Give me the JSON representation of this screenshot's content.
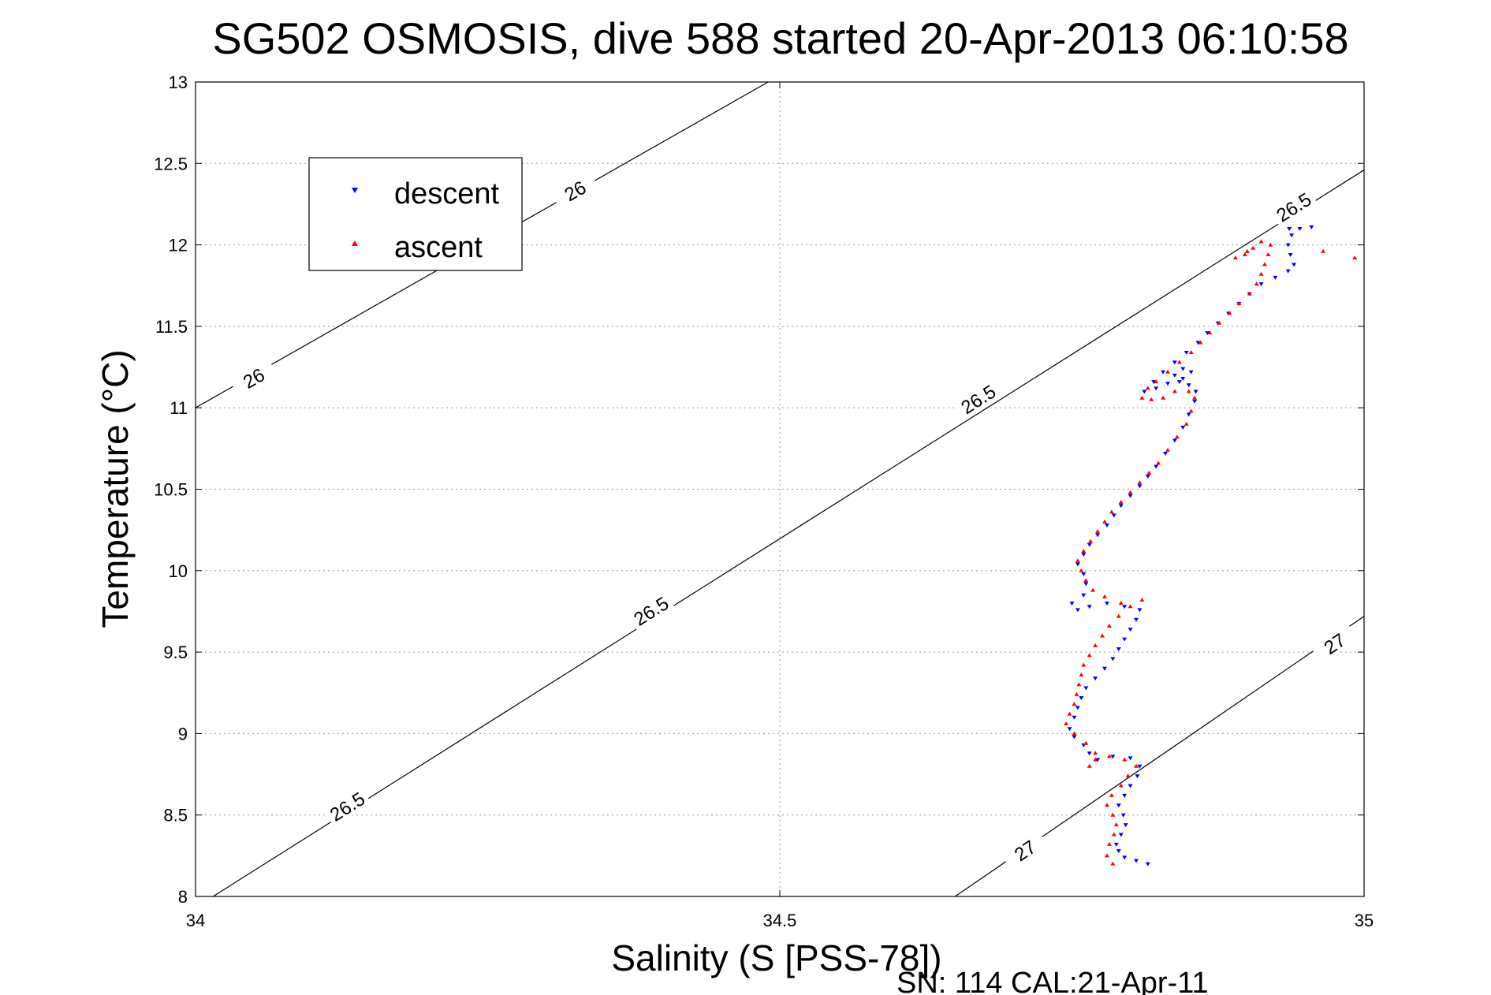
{
  "chart_data": {
    "type": "scatter",
    "title": "SG502 OSMOSIS, dive 588 started 20-Apr-2013 06:10:58",
    "xlabel": "Salinity (S [PSS-78])",
    "ylabel": "Temperature (°C)",
    "footer": "SN: 114  CAL:21-Apr-11",
    "xlim": [
      34,
      35
    ],
    "ylim": [
      8,
      13
    ],
    "xticks": [
      34,
      34.5,
      35
    ],
    "xtick_labels": [
      "34",
      "34.5",
      "35"
    ],
    "yticks": [
      8,
      8.5,
      9,
      9.5,
      10,
      10.5,
      11,
      11.5,
      12,
      12.5,
      13
    ],
    "ytick_labels": [
      "8",
      "8.5",
      "9",
      "9.5",
      "10",
      "10.5",
      "11",
      "11.5",
      "12",
      "12.5",
      "13"
    ],
    "grid": true,
    "legend": {
      "placement": "upper-left",
      "entries": [
        "descent",
        "ascent"
      ]
    },
    "colors": {
      "descent": "#0000ff",
      "ascent": "#ff0000",
      "contour": "#000000"
    },
    "contours": [
      {
        "label": "26",
        "points": [
          [
            34.0,
            11.0
          ],
          [
            34.49,
            13.0
          ]
        ],
        "labels_at": [
          [
            34.05,
            11.18
          ],
          [
            34.325,
            12.33
          ]
        ]
      },
      {
        "label": "26.5",
        "points": [
          [
            34.015,
            8.0
          ],
          [
            35.0,
            12.46
          ]
        ],
        "labels_at": [
          [
            34.13,
            8.55
          ],
          [
            34.39,
            9.75
          ],
          [
            34.67,
            11.05
          ],
          [
            34.94,
            12.23
          ]
        ]
      },
      {
        "label": "27",
        "points": [
          [
            34.65,
            8.0
          ],
          [
            35.0,
            9.72
          ]
        ],
        "labels_at": [
          [
            34.71,
            8.28
          ],
          [
            34.975,
            9.55
          ]
        ]
      }
    ],
    "series": [
      {
        "name": "descent",
        "marker": "triangle-down",
        "points": [
          [
            34.815,
            8.2
          ],
          [
            34.805,
            8.22
          ],
          [
            34.795,
            8.24
          ],
          [
            34.79,
            8.28
          ],
          [
            34.788,
            8.32
          ],
          [
            34.792,
            8.38
          ],
          [
            34.796,
            8.44
          ],
          [
            34.794,
            8.5
          ],
          [
            34.79,
            8.56
          ],
          [
            34.795,
            8.62
          ],
          [
            34.8,
            8.68
          ],
          [
            34.806,
            8.74
          ],
          [
            34.808,
            8.8
          ],
          [
            34.8,
            8.85
          ],
          [
            34.785,
            8.86
          ],
          [
            34.772,
            8.84
          ],
          [
            34.765,
            8.88
          ],
          [
            34.76,
            8.93
          ],
          [
            34.752,
            8.98
          ],
          [
            34.748,
            9.03
          ],
          [
            34.752,
            9.1
          ],
          [
            34.755,
            9.16
          ],
          [
            34.758,
            9.22
          ],
          [
            34.762,
            9.28
          ],
          [
            34.77,
            9.34
          ],
          [
            34.778,
            9.4
          ],
          [
            34.785,
            9.46
          ],
          [
            34.79,
            9.52
          ],
          [
            34.795,
            9.58
          ],
          [
            34.8,
            9.64
          ],
          [
            34.805,
            9.7
          ],
          [
            34.808,
            9.76
          ],
          [
            34.795,
            9.78
          ],
          [
            34.78,
            9.8
          ],
          [
            34.765,
            9.78
          ],
          [
            34.755,
            9.76
          ],
          [
            34.75,
            9.8
          ],
          [
            34.76,
            9.85
          ],
          [
            34.762,
            9.92
          ],
          [
            34.76,
            9.98
          ],
          [
            34.755,
            10.04
          ],
          [
            34.76,
            10.1
          ],
          [
            34.765,
            10.16
          ],
          [
            34.772,
            10.22
          ],
          [
            34.78,
            10.28
          ],
          [
            34.786,
            10.34
          ],
          [
            34.792,
            10.4
          ],
          [
            34.8,
            10.46
          ],
          [
            34.808,
            10.52
          ],
          [
            34.815,
            10.58
          ],
          [
            34.822,
            10.64
          ],
          [
            34.83,
            10.72
          ],
          [
            34.838,
            10.8
          ],
          [
            34.845,
            10.88
          ],
          [
            34.85,
            10.96
          ],
          [
            34.855,
            11.04
          ],
          [
            34.856,
            11.1
          ],
          [
            34.85,
            11.14
          ],
          [
            34.842,
            11.16
          ],
          [
            34.838,
            11.2
          ],
          [
            34.845,
            11.24
          ],
          [
            34.852,
            11.22
          ],
          [
            34.845,
            11.18
          ],
          [
            34.832,
            11.15
          ],
          [
            34.822,
            11.12
          ],
          [
            34.812,
            11.1
          ],
          [
            34.82,
            11.16
          ],
          [
            34.828,
            11.22
          ],
          [
            34.838,
            11.28
          ],
          [
            34.848,
            11.34
          ],
          [
            34.858,
            11.4
          ],
          [
            34.866,
            11.46
          ],
          [
            34.875,
            11.52
          ],
          [
            34.884,
            11.58
          ],
          [
            34.893,
            11.64
          ],
          [
            34.902,
            11.7
          ],
          [
            34.912,
            11.76
          ],
          [
            34.924,
            11.8
          ],
          [
            34.935,
            11.84
          ],
          [
            34.94,
            11.88
          ],
          [
            34.937,
            11.94
          ],
          [
            34.935,
            12.0
          ],
          [
            34.938,
            12.06
          ],
          [
            34.936,
            12.1
          ],
          [
            34.945,
            12.1
          ],
          [
            34.955,
            12.11
          ]
        ]
      },
      {
        "name": "ascent",
        "marker": "triangle-up",
        "points": [
          [
            34.785,
            8.2
          ],
          [
            34.78,
            8.25
          ],
          [
            34.782,
            8.32
          ],
          [
            34.786,
            8.38
          ],
          [
            34.788,
            8.44
          ],
          [
            34.785,
            8.5
          ],
          [
            34.78,
            8.56
          ],
          [
            34.784,
            8.62
          ],
          [
            34.792,
            8.68
          ],
          [
            34.798,
            8.74
          ],
          [
            34.805,
            8.8
          ],
          [
            34.795,
            8.84
          ],
          [
            34.782,
            8.86
          ],
          [
            34.77,
            8.84
          ],
          [
            34.765,
            8.8
          ],
          [
            34.77,
            8.88
          ],
          [
            34.762,
            8.94
          ],
          [
            34.752,
            9.0
          ],
          [
            34.745,
            9.06
          ],
          [
            34.748,
            9.12
          ],
          [
            34.752,
            9.18
          ],
          [
            34.754,
            9.24
          ],
          [
            34.756,
            9.3
          ],
          [
            34.758,
            9.36
          ],
          [
            34.76,
            9.42
          ],
          [
            34.765,
            9.48
          ],
          [
            34.77,
            9.54
          ],
          [
            34.776,
            9.6
          ],
          [
            34.782,
            9.66
          ],
          [
            34.79,
            9.72
          ],
          [
            34.8,
            9.78
          ],
          [
            34.81,
            9.82
          ],
          [
            34.792,
            9.8
          ],
          [
            34.778,
            9.84
          ],
          [
            34.768,
            9.88
          ],
          [
            34.762,
            9.94
          ],
          [
            34.758,
            10.0
          ],
          [
            34.755,
            10.06
          ],
          [
            34.76,
            10.12
          ],
          [
            34.766,
            10.18
          ],
          [
            34.772,
            10.24
          ],
          [
            34.778,
            10.3
          ],
          [
            34.784,
            10.36
          ],
          [
            34.792,
            10.42
          ],
          [
            34.8,
            10.48
          ],
          [
            34.808,
            10.54
          ],
          [
            34.816,
            10.6
          ],
          [
            34.824,
            10.66
          ],
          [
            34.832,
            10.74
          ],
          [
            34.84,
            10.82
          ],
          [
            34.848,
            10.9
          ],
          [
            34.852,
            10.98
          ],
          [
            34.855,
            11.06
          ],
          [
            34.85,
            11.1
          ],
          [
            34.838,
            11.1
          ],
          [
            34.828,
            11.06
          ],
          [
            34.818,
            11.05
          ],
          [
            34.81,
            11.06
          ],
          [
            34.815,
            11.12
          ],
          [
            34.822,
            11.16
          ],
          [
            34.832,
            11.22
          ],
          [
            34.842,
            11.28
          ],
          [
            34.852,
            11.34
          ],
          [
            34.86,
            11.4
          ],
          [
            34.868,
            11.46
          ],
          [
            34.876,
            11.52
          ],
          [
            34.885,
            11.58
          ],
          [
            34.893,
            11.64
          ],
          [
            34.902,
            11.7
          ],
          [
            34.908,
            11.76
          ],
          [
            34.912,
            11.82
          ],
          [
            34.915,
            11.88
          ],
          [
            34.918,
            11.94
          ],
          [
            34.92,
            12.0
          ],
          [
            34.912,
            12.02
          ],
          [
            34.905,
            11.98
          ],
          [
            34.898,
            11.94
          ],
          [
            34.89,
            11.92
          ],
          [
            34.9,
            11.96
          ],
          [
            34.965,
            11.96
          ],
          [
            34.992,
            11.92
          ]
        ]
      }
    ]
  }
}
